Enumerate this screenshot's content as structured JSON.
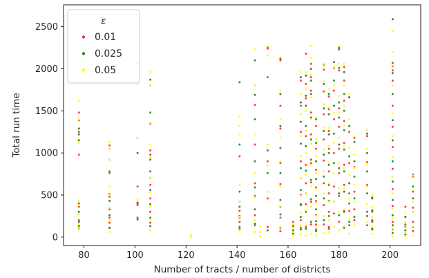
{
  "chart_data": {
    "type": "scatter",
    "title": "",
    "xlabel": "Number of tracts / number of districts",
    "ylabel": "Total run time",
    "xlim": [
      72,
      212
    ],
    "ylim": [
      -100,
      2760
    ],
    "xticks": [
      80,
      100,
      120,
      140,
      160,
      180,
      200
    ],
    "yticks": [
      0,
      500,
      1000,
      1500,
      2000,
      2500
    ],
    "grid": false,
    "legend": {
      "title": "ε",
      "placement": "top-left"
    },
    "series": [
      {
        "name": "0.01",
        "color": "#ff3333",
        "x": [
          78,
          78,
          78,
          78,
          78,
          78,
          78,
          78,
          90,
          90,
          90,
          90,
          90,
          90,
          90,
          101,
          101,
          101,
          101,
          101,
          101,
          106,
          106,
          106,
          106,
          106,
          106,
          106,
          106,
          141,
          141,
          141,
          141,
          141,
          141,
          147,
          147,
          147,
          147,
          147,
          147,
          147,
          152,
          152,
          152,
          152,
          152,
          157,
          157,
          157,
          157,
          157,
          157,
          157,
          157,
          162,
          162,
          162,
          162,
          165,
          165,
          165,
          165,
          165,
          165,
          165,
          165,
          165,
          167,
          167,
          167,
          167,
          167,
          167,
          167,
          167,
          169,
          169,
          169,
          169,
          169,
          169,
          169,
          169,
          169,
          171,
          171,
          171,
          171,
          171,
          171,
          171,
          171,
          174,
          174,
          174,
          174,
          174,
          174,
          174,
          174,
          176,
          176,
          176,
          176,
          176,
          176,
          176,
          176,
          178,
          178,
          178,
          178,
          178,
          178,
          180,
          180,
          180,
          180,
          180,
          180,
          180,
          180,
          182,
          182,
          182,
          182,
          182,
          182,
          182,
          182,
          182,
          184,
          184,
          184,
          184,
          184,
          184,
          186,
          186,
          186,
          186,
          186,
          191,
          191,
          191,
          191,
          191,
          193,
          193,
          193,
          193,
          201,
          201,
          201,
          201,
          201,
          201,
          201,
          201,
          201,
          201,
          201,
          206,
          206,
          206,
          206,
          209,
          209,
          209,
          209,
          209
        ],
        "y": [
          1480,
          1390,
          1250,
          980,
          360,
          200,
          140,
          95,
          1090,
          760,
          480,
          330,
          230,
          170,
          110,
          2070,
          1180,
          600,
          410,
          380,
          230,
          1800,
          1350,
          1030,
          980,
          620,
          460,
          300,
          170,
          960,
          420,
          310,
          250,
          180,
          95,
          1800,
          1570,
          1100,
          640,
          490,
          260,
          140,
          2240,
          1900,
          900,
          460,
          120,
          2100,
          1560,
          1290,
          880,
          630,
          360,
          230,
          70,
          180,
          130,
          90,
          60,
          1860,
          1560,
          1250,
          900,
          700,
          500,
          380,
          200,
          110,
          2180,
          1820,
          1650,
          1200,
          860,
          640,
          390,
          120,
          2060,
          1900,
          1740,
          1480,
          1220,
          880,
          650,
          420,
          150,
          1320,
          1050,
          800,
          590,
          430,
          260,
          150,
          90,
          1990,
          1730,
          1460,
          1160,
          910,
          640,
          380,
          150,
          1670,
          1520,
          1260,
          1050,
          780,
          520,
          300,
          120,
          2010,
          1740,
          1400,
          1000,
          600,
          280,
          2230,
          1980,
          1530,
          1310,
          1050,
          760,
          490,
          180,
          2020,
          1860,
          1620,
          1380,
          1120,
          860,
          620,
          310,
          120,
          1660,
          1250,
          880,
          520,
          310,
          140,
          1180,
          830,
          540,
          330,
          200,
          1200,
          890,
          620,
          300,
          140,
          470,
          300,
          180,
          100,
          2030,
          1980,
          1860,
          1560,
          1310,
          1070,
          810,
          570,
          370,
          180,
          90,
          360,
          240,
          120,
          60,
          720,
          540,
          350,
          180,
          70
        ]
      },
      {
        "name": "0.025",
        "color": "#228b22",
        "x": [
          78,
          78,
          78,
          78,
          78,
          78,
          78,
          90,
          90,
          90,
          90,
          90,
          90,
          90,
          101,
          101,
          101,
          101,
          106,
          106,
          106,
          106,
          106,
          106,
          106,
          106,
          106,
          141,
          141,
          141,
          141,
          141,
          141,
          147,
          147,
          147,
          147,
          147,
          147,
          147,
          152,
          152,
          152,
          152,
          157,
          157,
          157,
          157,
          157,
          157,
          157,
          157,
          162,
          162,
          162,
          165,
          165,
          165,
          165,
          165,
          165,
          165,
          165,
          165,
          167,
          167,
          167,
          167,
          167,
          167,
          167,
          167,
          167,
          169,
          169,
          169,
          169,
          169,
          169,
          169,
          169,
          169,
          171,
          171,
          171,
          171,
          171,
          171,
          171,
          171,
          174,
          174,
          174,
          174,
          174,
          174,
          174,
          174,
          176,
          176,
          176,
          176,
          176,
          176,
          176,
          176,
          176,
          178,
          178,
          178,
          178,
          178,
          178,
          180,
          180,
          180,
          180,
          180,
          180,
          180,
          180,
          182,
          182,
          182,
          182,
          182,
          182,
          182,
          182,
          182,
          184,
          184,
          184,
          184,
          184,
          184,
          186,
          186,
          186,
          186,
          186,
          191,
          191,
          191,
          191,
          191,
          193,
          193,
          193,
          193,
          201,
          201,
          201,
          201,
          201,
          201,
          201,
          201,
          201,
          201,
          201,
          201,
          206,
          206,
          206,
          206,
          209,
          209,
          209,
          209,
          209
        ],
        "y": [
          1290,
          1220,
          1150,
          400,
          300,
          180,
          130,
          1050,
          920,
          780,
          510,
          430,
          260,
          110,
          2240,
          1000,
          400,
          210,
          1870,
          1480,
          920,
          780,
          700,
          560,
          390,
          230,
          130,
          1840,
          1100,
          540,
          360,
          230,
          120,
          2100,
          1690,
          1400,
          900,
          590,
          330,
          160,
          2260,
          1030,
          760,
          80,
          2120,
          1700,
          1320,
          1060,
          760,
          440,
          270,
          110,
          140,
          80,
          40,
          1900,
          1600,
          1370,
          1110,
          820,
          560,
          390,
          240,
          90,
          1920,
          1680,
          1560,
          1320,
          1080,
          790,
          520,
          300,
          100,
          2000,
          1860,
          1700,
          1420,
          1160,
          920,
          680,
          450,
          180,
          1400,
          1120,
          900,
          690,
          490,
          330,
          190,
          70,
          2050,
          1820,
          1530,
          1260,
          980,
          720,
          460,
          200,
          1700,
          1460,
          1220,
          1000,
          860,
          620,
          430,
          250,
          100,
          2080,
          1860,
          1560,
          1230,
          880,
          420,
          2250,
          2010,
          1600,
          1420,
          1100,
          820,
          520,
          260,
          1960,
          1700,
          1500,
          1270,
          1040,
          780,
          540,
          300,
          110,
          1660,
          1320,
          960,
          640,
          400,
          180,
          1130,
          900,
          720,
          460,
          240,
          1230,
          1000,
          780,
          520,
          250,
          460,
          320,
          200,
          90,
          2590,
          2070,
          1950,
          1700,
          1390,
          1150,
          900,
          660,
          440,
          260,
          140,
          50,
          240,
          150,
          80,
          30,
          740,
          600,
          460,
          300,
          120
        ]
      },
      {
        "name": "0.05",
        "color": "#ffff00",
        "x": [
          78,
          78,
          78,
          78,
          78,
          78,
          78,
          78,
          90,
          90,
          90,
          90,
          90,
          90,
          90,
          90,
          101,
          101,
          101,
          101,
          106,
          106,
          106,
          106,
          106,
          106,
          106,
          106,
          106,
          106,
          122,
          122,
          122,
          141,
          141,
          141,
          141,
          141,
          141,
          141,
          147,
          147,
          147,
          147,
          147,
          147,
          147,
          149,
          149,
          149,
          152,
          152,
          152,
          152,
          152,
          157,
          157,
          157,
          157,
          157,
          157,
          157,
          157,
          162,
          162,
          162,
          162,
          165,
          165,
          165,
          165,
          165,
          165,
          165,
          165,
          165,
          165,
          167,
          167,
          167,
          167,
          167,
          167,
          167,
          167,
          167,
          167,
          169,
          169,
          169,
          169,
          169,
          169,
          169,
          169,
          169,
          169,
          171,
          171,
          171,
          171,
          171,
          171,
          171,
          171,
          171,
          174,
          174,
          174,
          174,
          174,
          174,
          174,
          174,
          174,
          176,
          176,
          176,
          176,
          176,
          176,
          176,
          176,
          176,
          178,
          178,
          178,
          178,
          178,
          178,
          178,
          180,
          180,
          180,
          180,
          180,
          180,
          180,
          180,
          180,
          182,
          182,
          182,
          182,
          182,
          182,
          182,
          182,
          182,
          184,
          184,
          184,
          184,
          184,
          184,
          184,
          186,
          186,
          186,
          186,
          186,
          186,
          191,
          191,
          191,
          191,
          191,
          191,
          193,
          193,
          193,
          193,
          193,
          201,
          201,
          201,
          201,
          201,
          201,
          201,
          201,
          201,
          201,
          201,
          201,
          201,
          206,
          206,
          206,
          206,
          206,
          209,
          209,
          209,
          209,
          209,
          209
        ],
        "y": [
          1620,
          1400,
          1120,
          430,
          380,
          270,
          150,
          90,
          1130,
          1050,
          920,
          600,
          500,
          350,
          200,
          60,
          2240,
          1820,
          1180,
          440,
          1960,
          1800,
          1360,
          1100,
          950,
          700,
          530,
          360,
          200,
          80,
          20,
          10,
          0,
          1430,
          1320,
          1220,
          620,
          420,
          240,
          80,
          2230,
          1800,
          1220,
          760,
          470,
          200,
          60,
          130,
          60,
          10,
          2270,
          2160,
          1100,
          850,
          540,
          2140,
          1740,
          1400,
          1180,
          900,
          600,
          370,
          120,
          150,
          100,
          60,
          20,
          1960,
          1700,
          1460,
          1200,
          960,
          700,
          490,
          290,
          140,
          30,
          1960,
          1760,
          1500,
          1260,
          1000,
          740,
          520,
          320,
          140,
          20,
          2270,
          2130,
          1930,
          1660,
          1400,
          1110,
          860,
          600,
          360,
          40,
          1420,
          1170,
          960,
          760,
          570,
          410,
          250,
          120,
          20,
          2060,
          1850,
          1580,
          1300,
          1040,
          780,
          520,
          250,
          50,
          1760,
          1540,
          1300,
          1080,
          880,
          640,
          420,
          200,
          60,
          2020,
          1800,
          1480,
          1120,
          760,
          420,
          120,
          2270,
          2060,
          1680,
          1480,
          1180,
          880,
          580,
          300,
          80,
          2060,
          1800,
          1560,
          1320,
          1080,
          820,
          580,
          330,
          130,
          1700,
          1400,
          1060,
          740,
          460,
          220,
          40,
          1200,
          980,
          820,
          620,
          420,
          140,
          1280,
          1050,
          860,
          600,
          390,
          180,
          500,
          360,
          240,
          120,
          40,
          2450,
          2200,
          2040,
          1800,
          1470,
          1200,
          950,
          720,
          520,
          340,
          220,
          100,
          10,
          290,
          180,
          110,
          60,
          10,
          730,
          560,
          420,
          300,
          130,
          20
        ]
      }
    ]
  }
}
